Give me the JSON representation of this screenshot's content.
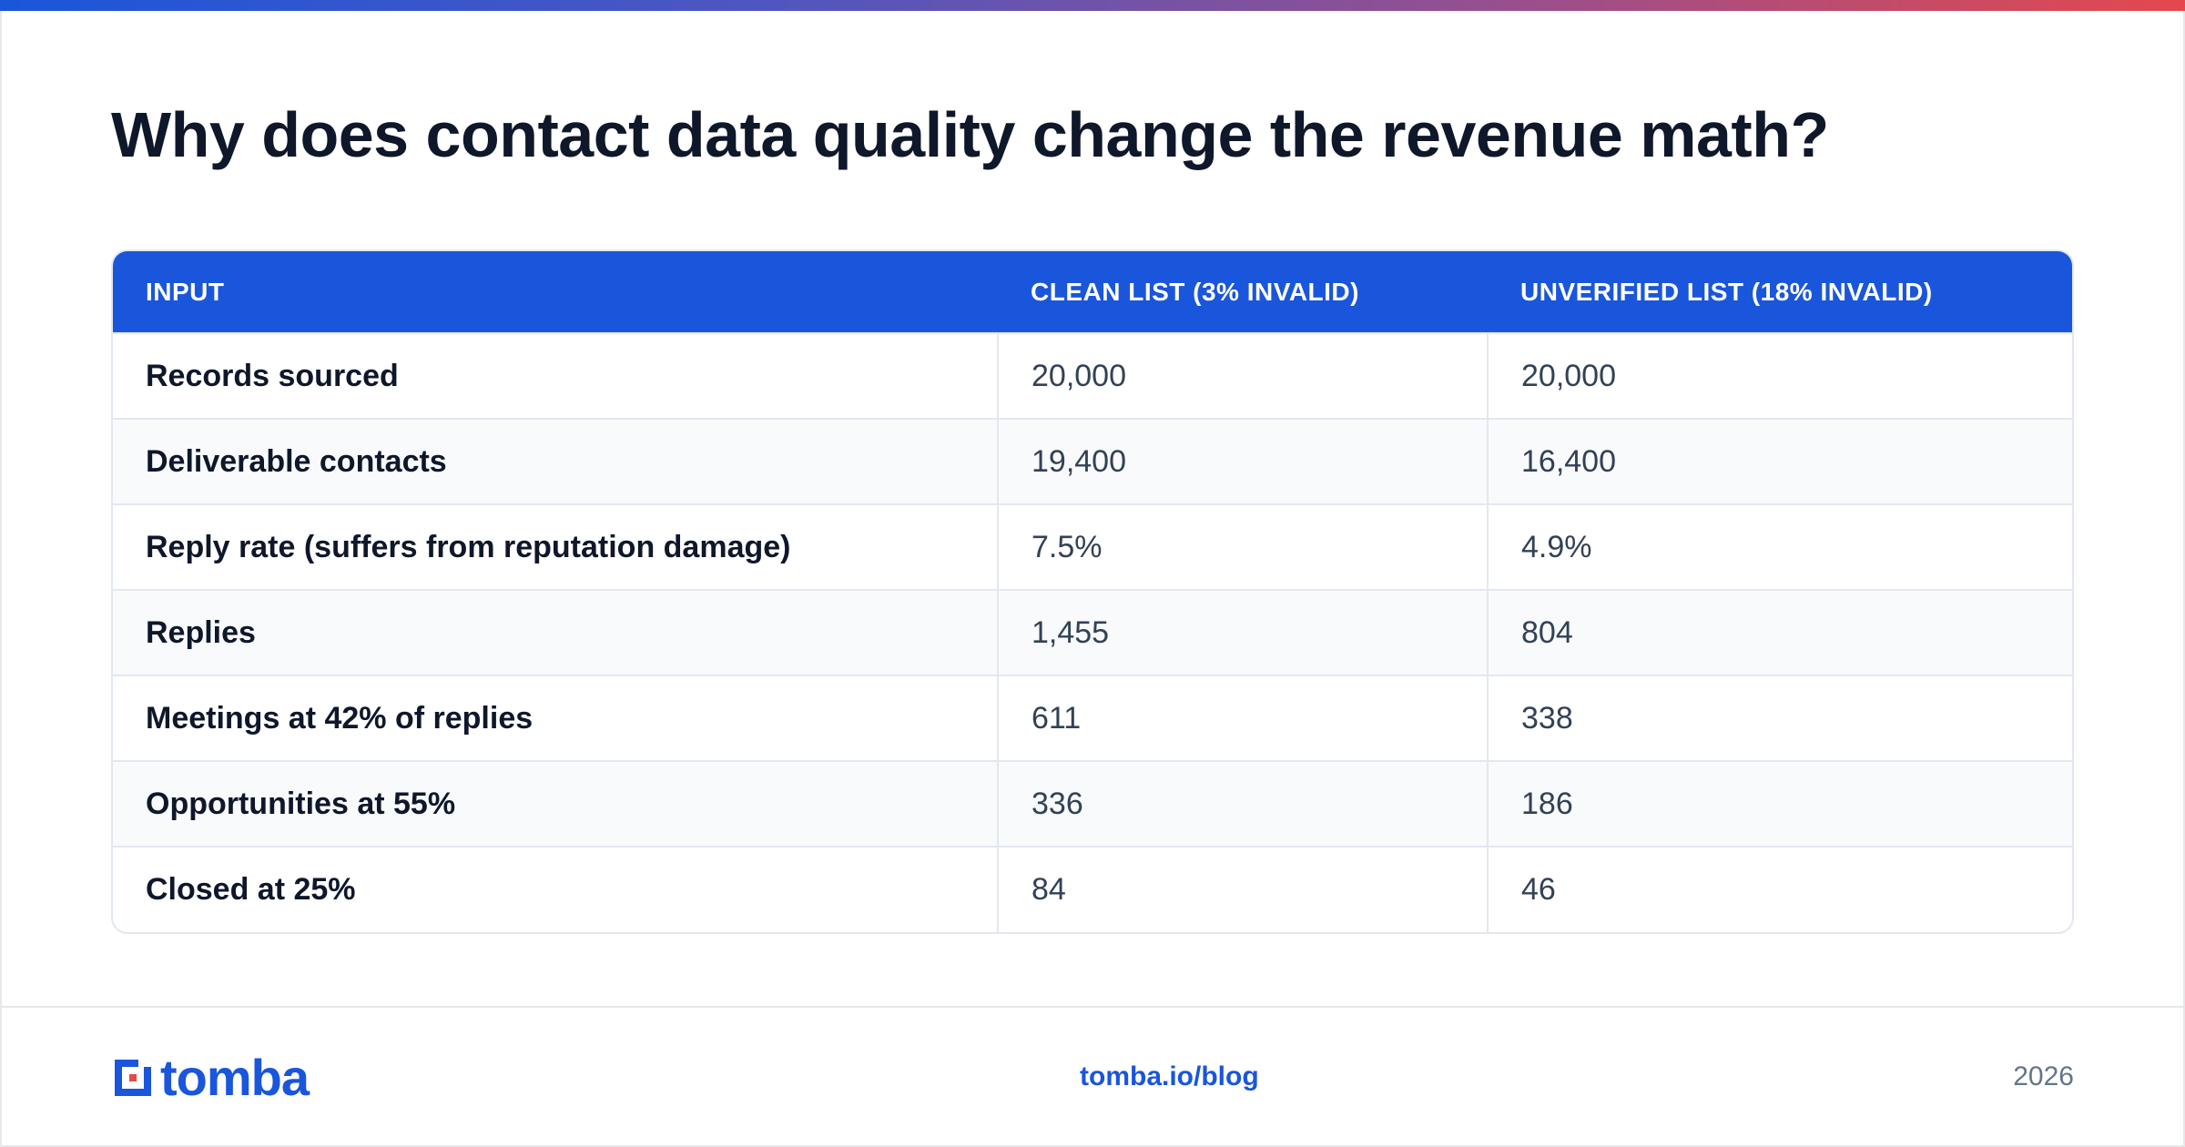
{
  "title": "Why does contact data quality change the revenue math?",
  "colors": {
    "accent": "#1a56db",
    "gradient_end": "#e5484d",
    "logo_red": "#e5484d"
  },
  "table": {
    "headers": [
      "INPUT",
      "CLEAN LIST (3% INVALID)",
      "UNVERIFIED LIST (18% INVALID)"
    ],
    "rows": [
      [
        "Records sourced",
        "20,000",
        "20,000"
      ],
      [
        "Deliverable contacts",
        "19,400",
        "16,400"
      ],
      [
        "Reply rate (suffers from reputation damage)",
        "7.5%",
        "4.9%"
      ],
      [
        "Replies",
        "1,455",
        "804"
      ],
      [
        "Meetings at 42% of replies",
        "611",
        "338"
      ],
      [
        "Opportunities at 55%",
        "336",
        "186"
      ],
      [
        "Closed at 25%",
        "84",
        "46"
      ]
    ]
  },
  "footer": {
    "logo_text": "tomba",
    "link": "tomba.io/blog",
    "year": "2026"
  }
}
